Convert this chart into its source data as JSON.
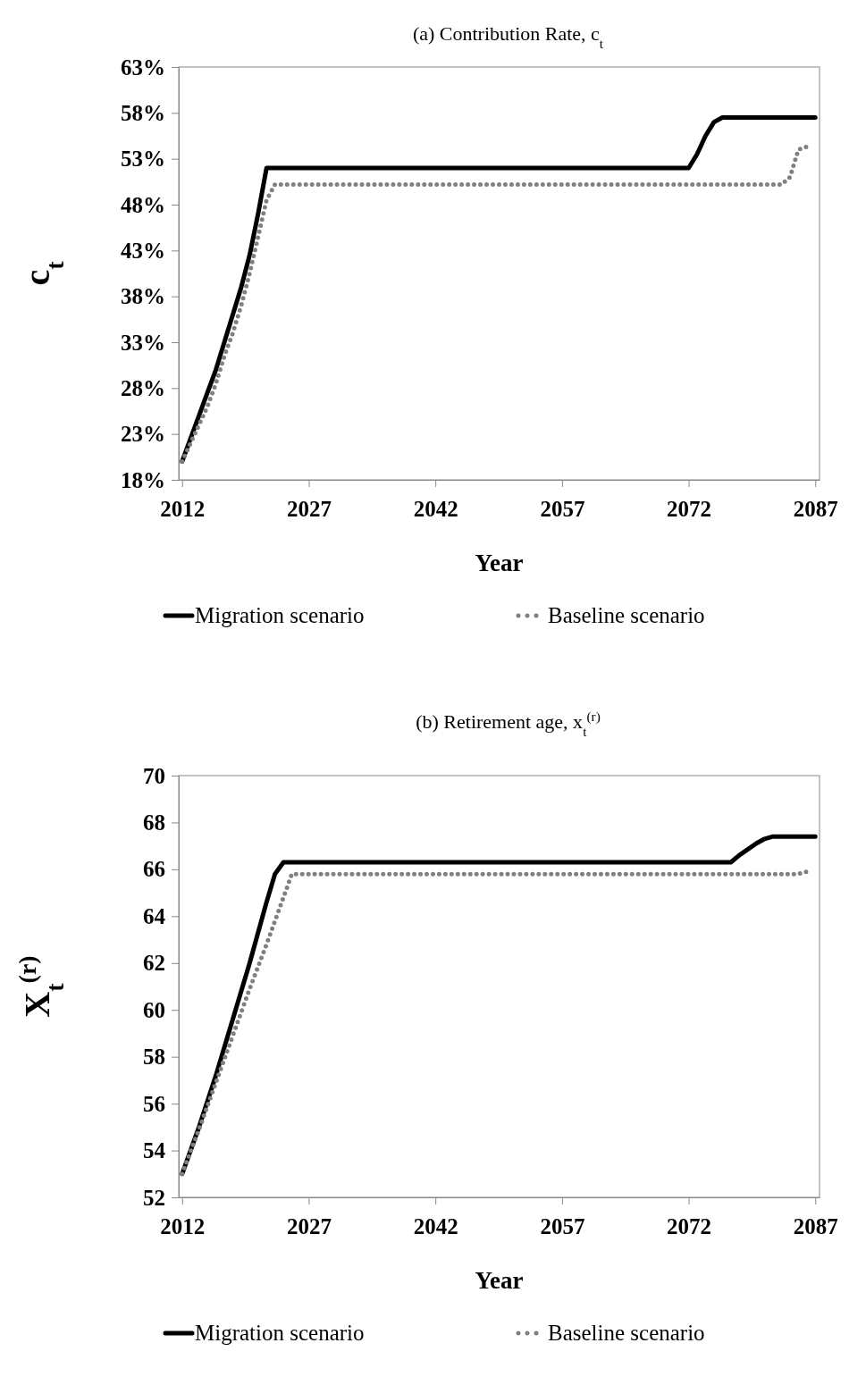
{
  "chart_data": [
    {
      "type": "line",
      "title": "(a) Contribution Rate, c$_{t}$",
      "xlabel": "Year",
      "ylabel": "c$_{t}$",
      "xlim": [
        2011.6,
        2087.5
      ],
      "xticks": [
        2012,
        2027,
        2042,
        2057,
        2072,
        2087
      ],
      "ylim": [
        18,
        63
      ],
      "yticks": [
        {
          "value": 18,
          "label": "18%"
        },
        {
          "value": 23,
          "label": "23%"
        },
        {
          "value": 28,
          "label": "28%"
        },
        {
          "value": 33,
          "label": "33%"
        },
        {
          "value": 38,
          "label": "38%"
        },
        {
          "value": 43,
          "label": "43%"
        },
        {
          "value": 48,
          "label": "48%"
        },
        {
          "value": 53,
          "label": "53%"
        },
        {
          "value": 58,
          "label": "58%"
        },
        {
          "value": 63,
          "label": "63%"
        }
      ],
      "grid": false,
      "legend": "bottom",
      "marker": "none",
      "series": [
        {
          "name": "Migration scenario",
          "color": "#000000",
          "line_style": "solid",
          "x": [
            2012,
            2013,
            2014,
            2015,
            2016,
            2017,
            2018,
            2019,
            2020,
            2021,
            2022,
            2072,
            2073,
            2074,
            2075,
            2076,
            2087
          ],
          "values": [
            20,
            22.5,
            25,
            27.5,
            30,
            33,
            36,
            39,
            42.5,
            47,
            52,
            52,
            53.5,
            55.5,
            57,
            57.5,
            57.5
          ]
        },
        {
          "name": "Baseline scenario",
          "color": "#808080",
          "line_style": "dotted",
          "x": [
            2012,
            2013,
            2014,
            2015,
            2016,
            2017,
            2018,
            2019,
            2020,
            2021,
            2022,
            2023,
            2083,
            2084,
            2085,
            2086
          ],
          "values": [
            20,
            22,
            24,
            26,
            28.5,
            31.5,
            34,
            37,
            40.5,
            44.5,
            48.5,
            50.2,
            50.2,
            51,
            54,
            54.3
          ]
        }
      ]
    },
    {
      "type": "line",
      "title": "(b) Retirement age, x$_{t}$$^{(r)}$",
      "xlabel": "Year",
      "ylabel": "X$_{t}$$^{(r)}$",
      "xlim": [
        2011.6,
        2087.5
      ],
      "xticks": [
        2012,
        2027,
        2042,
        2057,
        2072,
        2087
      ],
      "ylim": [
        52,
        70
      ],
      "yticks": [
        52,
        54,
        56,
        58,
        60,
        62,
        64,
        66,
        68,
        70
      ],
      "grid": false,
      "legend": "bottom",
      "marker": "none",
      "series": [
        {
          "name": "Migration scenario",
          "color": "#000000",
          "line_style": "solid",
          "x": [
            2012,
            2014,
            2016,
            2018,
            2020,
            2022,
            2023,
            2024,
            2077,
            2078,
            2080,
            2081,
            2082,
            2087
          ],
          "values": [
            53,
            55,
            57.2,
            59.6,
            62,
            64.6,
            65.8,
            66.3,
            66.3,
            66.6,
            67.1,
            67.3,
            67.4,
            67.4
          ]
        },
        {
          "name": "Baseline scenario",
          "color": "#808080",
          "line_style": "dotted",
          "x": [
            2012,
            2014,
            2016,
            2018,
            2020,
            2022,
            2024,
            2025,
            2085,
            2086
          ],
          "values": [
            53,
            54.9,
            56.9,
            58.9,
            60.9,
            62.8,
            64.8,
            65.8,
            65.8,
            65.9
          ]
        }
      ]
    }
  ]
}
